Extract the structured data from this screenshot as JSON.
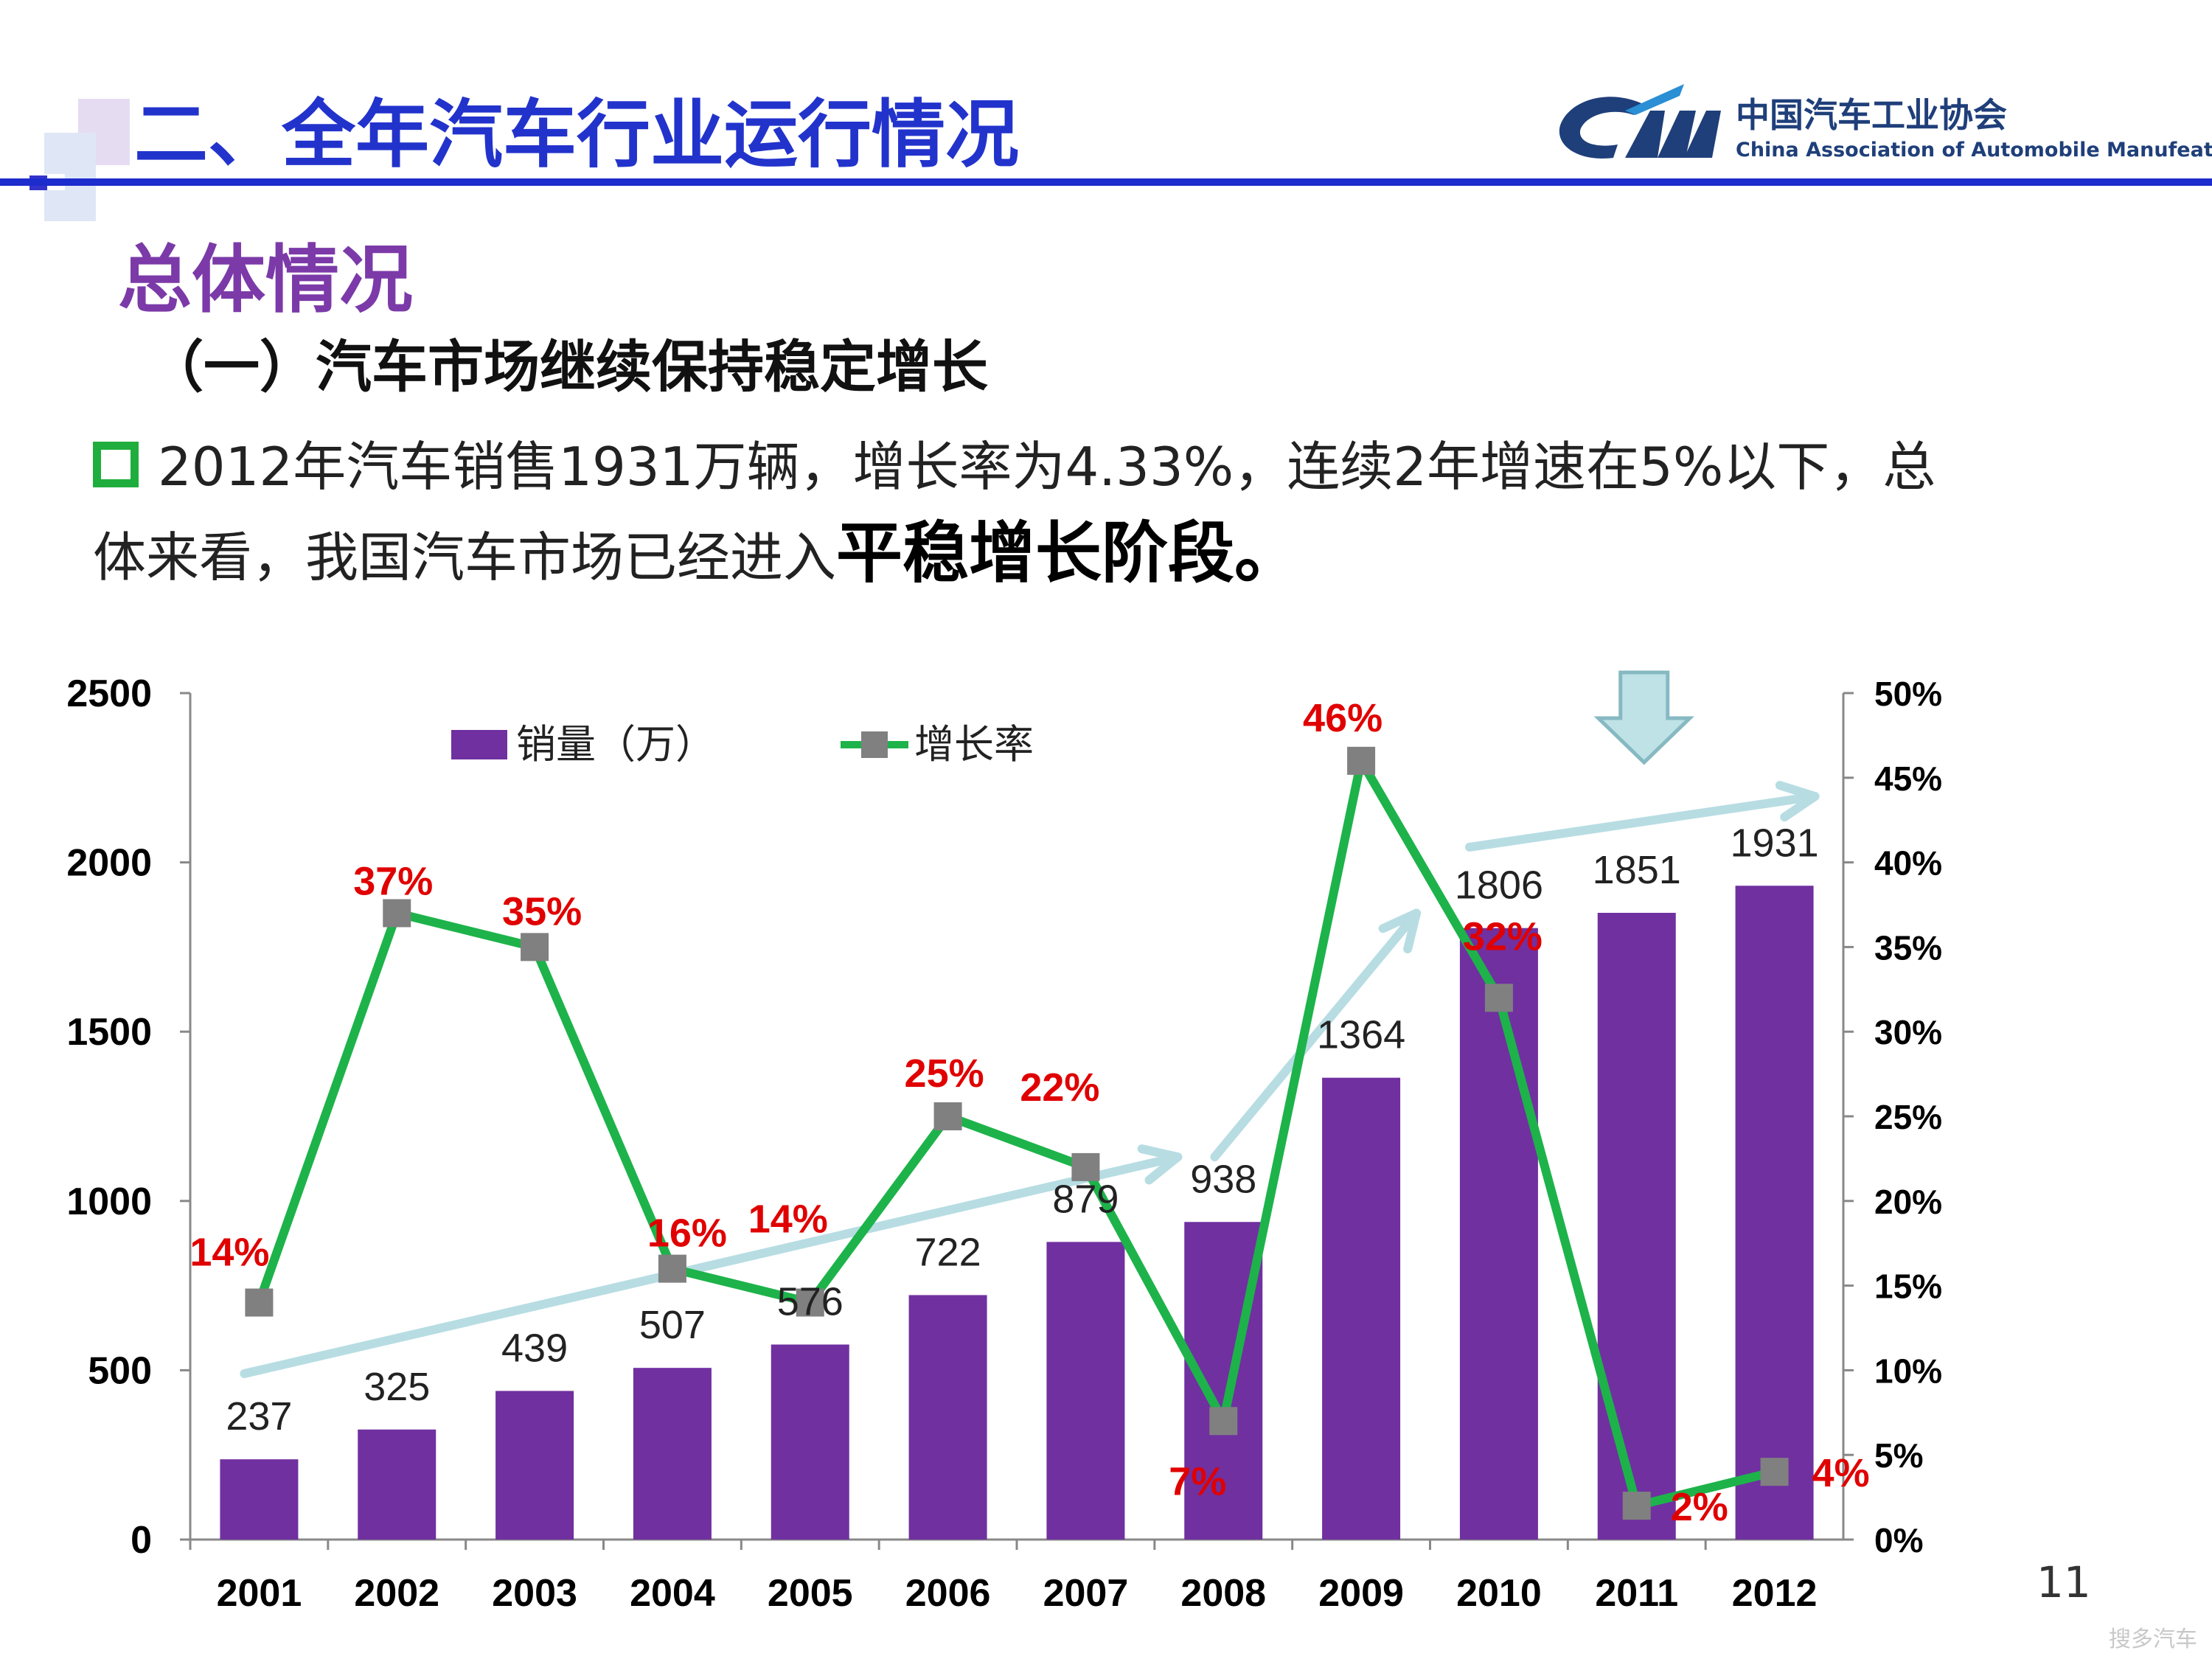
{
  "header": {
    "title": "二、全年汽车行业运行情况",
    "logo_cn": "中国汽车工业协会",
    "logo_en": "China Association of Automobile Manufeatures"
  },
  "subtitle": "总体情况",
  "section_heading": "（一）汽车市场继续保持稳定增长",
  "body": {
    "line1": "2012年汽车销售1931万辆，增长率为4.33%，连续2年增速在5%以下，总",
    "line2_pre": "体来看，我国汽车市场已经进入",
    "line2_bold": "平稳增长阶段。"
  },
  "page_number": "11",
  "watermark": "搜多汽车",
  "colors": {
    "bar": "#7030a0",
    "line": "#1db34a",
    "marker": "#808080",
    "rate_label": "#e00000",
    "trend_arrow": "#b7dde3",
    "title_blue": "#2233cc",
    "subtitle_purple": "#7b3aa8"
  },
  "chart_data": {
    "type": "bar",
    "categories": [
      "2001",
      "2002",
      "2003",
      "2004",
      "2005",
      "2006",
      "2007",
      "2008",
      "2009",
      "2010",
      "2011",
      "2012"
    ],
    "series": [
      {
        "name": "销量（万）",
        "kind": "bar",
        "axis": "left",
        "values": [
          237,
          325,
          439,
          507,
          576,
          722,
          879,
          938,
          1364,
          1806,
          1851,
          1931
        ],
        "labels": [
          "237",
          "325",
          "439",
          "507",
          "576",
          "722",
          "879",
          "938",
          "1364",
          "1806",
          "1851",
          "1931"
        ]
      },
      {
        "name": "增长率",
        "kind": "line",
        "axis": "right",
        "values": [
          14,
          37,
          35,
          16,
          14,
          25,
          22,
          7,
          46,
          32,
          2,
          4
        ],
        "labels": [
          "14%",
          "37%",
          "35%",
          "16%",
          "14%",
          "25%",
          "22%",
          "7%",
          "46%",
          "32%",
          "2%",
          "4%"
        ]
      }
    ],
    "y_left": {
      "range": [
        0,
        2500
      ],
      "ticks": [
        "0",
        "500",
        "1000",
        "1500",
        "2000",
        "2500"
      ]
    },
    "y_right": {
      "range": [
        0,
        50
      ],
      "ticks": [
        "0%",
        "5%",
        "10%",
        "15%",
        "20%",
        "25%",
        "30%",
        "35%",
        "40%",
        "45%",
        "50%"
      ]
    },
    "legend_position": "top-left",
    "annotations": [
      "rising trend arrows over sales bars",
      "downward arrow above 2011"
    ]
  }
}
